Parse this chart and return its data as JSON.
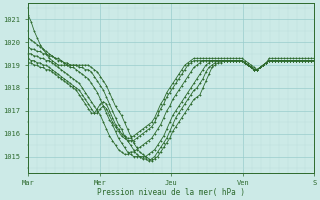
{
  "bg_color": "#cceae7",
  "grid_color_major": "#99cccc",
  "grid_color_minor": "#bbdddd",
  "line_color": "#2d6a2d",
  "xlabel": "Pression niveau de la mer( hPa )",
  "xtick_labels": [
    "Mar",
    "Mer",
    "Jeu",
    "Ven",
    "S"
  ],
  "xtick_positions": [
    0,
    48,
    96,
    144,
    192
  ],
  "ylim": [
    1014.3,
    1021.7
  ],
  "ytick_vals": [
    1015,
    1016,
    1017,
    1018,
    1019,
    1020,
    1021
  ],
  "total_hours": 192,
  "figsize": [
    3.2,
    2.0
  ],
  "dpi": 100,
  "series": [
    [
      1021.2,
      1020.9,
      1020.5,
      1020.2,
      1019.9,
      1019.7,
      1019.5,
      1019.3,
      1019.2,
      1019.1,
      1019.0,
      1019.0,
      1019.0,
      1019.0,
      1019.0,
      1019.0,
      1019.0,
      1019.0,
      1019.0,
      1019.0,
      1019.0,
      1018.9,
      1018.8,
      1018.7,
      1018.5,
      1018.3,
      1018.1,
      1017.8,
      1017.5,
      1017.2,
      1017.0,
      1016.8,
      1016.5,
      1016.2,
      1015.9,
      1015.6,
      1015.4,
      1015.2,
      1015.1,
      1015.0,
      1014.9,
      1014.8,
      1014.9,
      1015.0,
      1015.2,
      1015.4,
      1015.6,
      1015.8,
      1016.1,
      1016.3,
      1016.5,
      1016.7,
      1016.9,
      1017.1,
      1017.3,
      1017.5,
      1017.6,
      1017.7,
      1018.0,
      1018.3,
      1018.6,
      1018.9,
      1019.0,
      1019.1,
      1019.1,
      1019.2,
      1019.2,
      1019.2,
      1019.2,
      1019.2,
      1019.2,
      1019.2,
      1019.1,
      1019.0,
      1018.9,
      1018.8,
      1018.8,
      1018.9,
      1019.0,
      1019.1,
      1019.2,
      1019.2,
      1019.2,
      1019.2,
      1019.2,
      1019.2,
      1019.2,
      1019.2,
      1019.2,
      1019.2,
      1019.2,
      1019.2,
      1019.2,
      1019.2,
      1019.2,
      1019.2
    ],
    [
      1020.2,
      1020.1,
      1020.0,
      1019.9,
      1019.8,
      1019.7,
      1019.6,
      1019.5,
      1019.4,
      1019.3,
      1019.2,
      1019.2,
      1019.1,
      1019.1,
      1019.0,
      1019.0,
      1019.0,
      1018.9,
      1018.9,
      1018.8,
      1018.8,
      1018.7,
      1018.5,
      1018.3,
      1018.1,
      1017.9,
      1017.6,
      1017.3,
      1017.0,
      1016.7,
      1016.4,
      1016.2,
      1015.9,
      1015.7,
      1015.5,
      1015.3,
      1015.1,
      1015.0,
      1014.9,
      1014.9,
      1014.8,
      1014.9,
      1015.0,
      1015.2,
      1015.4,
      1015.6,
      1015.8,
      1016.1,
      1016.4,
      1016.7,
      1016.9,
      1017.1,
      1017.3,
      1017.5,
      1017.7,
      1017.9,
      1018.0,
      1018.2,
      1018.4,
      1018.7,
      1018.9,
      1019.0,
      1019.1,
      1019.2,
      1019.2,
      1019.2,
      1019.2,
      1019.2,
      1019.2,
      1019.2,
      1019.2,
      1019.2,
      1019.1,
      1019.0,
      1018.9,
      1018.8,
      1018.8,
      1018.9,
      1019.0,
      1019.1,
      1019.2,
      1019.2,
      1019.2,
      1019.2,
      1019.2,
      1019.2,
      1019.2,
      1019.2,
      1019.2,
      1019.2,
      1019.2,
      1019.2,
      1019.2,
      1019.2,
      1019.2,
      1019.2
    ],
    [
      1019.8,
      1019.7,
      1019.7,
      1019.6,
      1019.6,
      1019.5,
      1019.5,
      1019.4,
      1019.4,
      1019.3,
      1019.3,
      1019.2,
      1019.1,
      1019.0,
      1018.9,
      1018.9,
      1018.8,
      1018.7,
      1018.6,
      1018.5,
      1018.4,
      1018.2,
      1018.0,
      1017.8,
      1017.5,
      1017.2,
      1016.9,
      1016.6,
      1016.4,
      1016.1,
      1015.8,
      1015.6,
      1015.4,
      1015.2,
      1015.1,
      1015.0,
      1015.0,
      1015.0,
      1015.0,
      1015.0,
      1015.1,
      1015.2,
      1015.3,
      1015.5,
      1015.7,
      1015.9,
      1016.2,
      1016.5,
      1016.8,
      1017.0,
      1017.2,
      1017.4,
      1017.6,
      1017.8,
      1018.0,
      1018.2,
      1018.4,
      1018.6,
      1018.8,
      1019.0,
      1019.1,
      1019.2,
      1019.2,
      1019.2,
      1019.2,
      1019.2,
      1019.2,
      1019.2,
      1019.2,
      1019.2,
      1019.2,
      1019.2,
      1019.1,
      1019.0,
      1018.9,
      1018.8,
      1018.8,
      1018.9,
      1019.0,
      1019.1,
      1019.2,
      1019.2,
      1019.2,
      1019.2,
      1019.2,
      1019.2,
      1019.2,
      1019.2,
      1019.2,
      1019.2,
      1019.2,
      1019.2,
      1019.2,
      1019.2,
      1019.2,
      1019.2
    ],
    [
      1019.5,
      1019.5,
      1019.4,
      1019.4,
      1019.3,
      1019.3,
      1019.2,
      1019.2,
      1019.1,
      1019.0,
      1018.9,
      1018.8,
      1018.7,
      1018.6,
      1018.5,
      1018.4,
      1018.3,
      1018.2,
      1018.0,
      1017.8,
      1017.6,
      1017.4,
      1017.2,
      1017.0,
      1016.8,
      1016.5,
      1016.2,
      1015.9,
      1015.7,
      1015.5,
      1015.3,
      1015.2,
      1015.1,
      1015.1,
      1015.2,
      1015.2,
      1015.3,
      1015.4,
      1015.5,
      1015.6,
      1015.7,
      1015.8,
      1016.0,
      1016.2,
      1016.4,
      1016.7,
      1017.0,
      1017.2,
      1017.5,
      1017.7,
      1017.9,
      1018.1,
      1018.3,
      1018.5,
      1018.7,
      1018.9,
      1019.0,
      1019.1,
      1019.2,
      1019.2,
      1019.2,
      1019.2,
      1019.2,
      1019.2,
      1019.2,
      1019.2,
      1019.2,
      1019.2,
      1019.2,
      1019.2,
      1019.2,
      1019.2,
      1019.1,
      1019.0,
      1018.9,
      1018.8,
      1018.8,
      1018.9,
      1019.0,
      1019.1,
      1019.2,
      1019.2,
      1019.2,
      1019.2,
      1019.2,
      1019.2,
      1019.2,
      1019.2,
      1019.2,
      1019.2,
      1019.2,
      1019.2,
      1019.2,
      1019.2,
      1019.2,
      1019.2
    ],
    [
      1019.3,
      1019.2,
      1019.2,
      1019.1,
      1019.1,
      1019.0,
      1019.0,
      1018.9,
      1018.8,
      1018.7,
      1018.6,
      1018.5,
      1018.4,
      1018.3,
      1018.2,
      1018.1,
      1018.0,
      1017.9,
      1017.7,
      1017.5,
      1017.3,
      1017.1,
      1016.9,
      1016.9,
      1017.1,
      1017.2,
      1017.1,
      1016.8,
      1016.5,
      1016.3,
      1016.1,
      1015.9,
      1015.8,
      1015.7,
      1015.7,
      1015.7,
      1015.8,
      1015.9,
      1016.0,
      1016.1,
      1016.2,
      1016.3,
      1016.5,
      1016.8,
      1017.1,
      1017.3,
      1017.6,
      1017.8,
      1018.0,
      1018.2,
      1018.4,
      1018.6,
      1018.8,
      1019.0,
      1019.1,
      1019.2,
      1019.2,
      1019.2,
      1019.2,
      1019.2,
      1019.2,
      1019.2,
      1019.2,
      1019.2,
      1019.2,
      1019.2,
      1019.2,
      1019.2,
      1019.2,
      1019.2,
      1019.2,
      1019.2,
      1019.1,
      1019.0,
      1018.9,
      1018.8,
      1018.8,
      1018.9,
      1019.0,
      1019.1,
      1019.2,
      1019.2,
      1019.2,
      1019.2,
      1019.2,
      1019.2,
      1019.2,
      1019.2,
      1019.2,
      1019.2,
      1019.2,
      1019.2,
      1019.2,
      1019.2,
      1019.2,
      1019.2
    ],
    [
      1019.1,
      1019.1,
      1019.0,
      1019.0,
      1018.9,
      1018.9,
      1018.8,
      1018.8,
      1018.7,
      1018.6,
      1018.5,
      1018.4,
      1018.3,
      1018.2,
      1018.1,
      1018.0,
      1017.9,
      1017.7,
      1017.5,
      1017.3,
      1017.1,
      1016.9,
      1016.9,
      1017.1,
      1017.3,
      1017.4,
      1017.3,
      1017.0,
      1016.7,
      1016.4,
      1016.2,
      1016.0,
      1015.9,
      1015.8,
      1015.8,
      1015.9,
      1016.0,
      1016.1,
      1016.2,
      1016.3,
      1016.4,
      1016.5,
      1016.7,
      1017.0,
      1017.3,
      1017.5,
      1017.8,
      1018.0,
      1018.2,
      1018.4,
      1018.6,
      1018.8,
      1019.0,
      1019.1,
      1019.2,
      1019.3,
      1019.3,
      1019.3,
      1019.3,
      1019.3,
      1019.3,
      1019.3,
      1019.3,
      1019.3,
      1019.3,
      1019.3,
      1019.3,
      1019.3,
      1019.3,
      1019.3,
      1019.3,
      1019.3,
      1019.2,
      1019.1,
      1019.0,
      1018.9,
      1018.8,
      1018.9,
      1019.0,
      1019.1,
      1019.3,
      1019.3,
      1019.3,
      1019.3,
      1019.3,
      1019.3,
      1019.3,
      1019.3,
      1019.3,
      1019.3,
      1019.3,
      1019.3,
      1019.3,
      1019.3,
      1019.3,
      1019.3
    ]
  ]
}
